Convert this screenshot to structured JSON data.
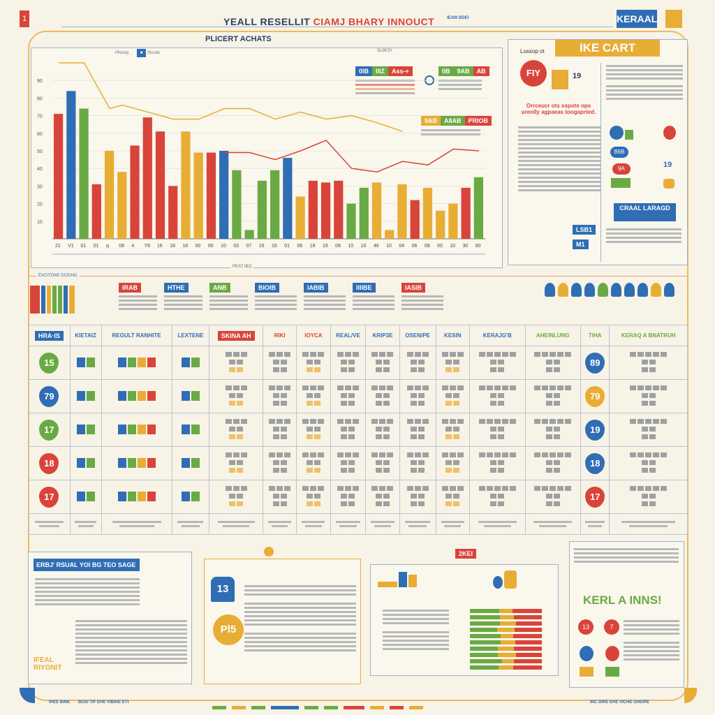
{
  "header": {
    "title_left": "YEALL RESELLIT",
    "title_right": "CIAMJ BHARY INNOUCT",
    "brand": "KERAAL",
    "left_badge": "1",
    "top_note": "IEAW BDEI"
  },
  "chart_panel": {
    "title": "PLICERT ACHATS",
    "legend": [
      "Plictsig",
      "Stcsds"
    ],
    "legend_box_a": [
      "0IB",
      "IIIZ",
      "Ass-+"
    ],
    "legend_box_b": [
      "0B",
      "9AB",
      "AB"
    ],
    "legend_box_c": [
      "9AB",
      "A8AB",
      "PRIOB"
    ],
    "slider_label": "SL9K3Y",
    "footer_note": "PEAT IBQ"
  },
  "chart_data": {
    "type": "bar",
    "title": "PLICERT ACHATS",
    "xlabel": "",
    "ylabel": "",
    "ylim": [
      0,
      100
    ],
    "yticks": [
      "90",
      "80",
      "70",
      "60",
      "50",
      "40",
      "30",
      "20",
      "10"
    ],
    "categories": [
      "21",
      "V1",
      "01",
      "01",
      "q",
      "08",
      "4",
      "Y6",
      "16",
      "18",
      "16",
      "00",
      "00",
      "10",
      "03",
      "07",
      "16",
      "16",
      "01",
      "06",
      "16",
      "16",
      "06",
      "10",
      "10",
      "46",
      "10",
      "04",
      "06",
      "08",
      "00",
      "10",
      "30",
      "60"
    ],
    "values": [
      71,
      84,
      74,
      31,
      50,
      38,
      53,
      69,
      61,
      30,
      61,
      49,
      49,
      50,
      39,
      5,
      33,
      39,
      46,
      24,
      33,
      32,
      33,
      20,
      29,
      32,
      5,
      31,
      22,
      29,
      16,
      20,
      29,
      35
    ],
    "bar_colors": [
      "#d9443a",
      "#2f6db5",
      "#6aaa45",
      "#d9443a",
      "#e8ad35",
      "#e8ad35",
      "#d9443a",
      "#d9443a",
      "#d9443a",
      "#d9443a",
      "#e8ad35",
      "#e8ad35",
      "#d9443a",
      "#2f6db5",
      "#6aaa45",
      "#6aaa45",
      "#6aaa45",
      "#6aaa45",
      "#2f6db5",
      "#e8ad35",
      "#d9443a",
      "#d9443a",
      "#d9443a",
      "#6aaa45",
      "#6aaa45",
      "#e8ad35",
      "#e8ad35",
      "#e8ad35",
      "#d9443a",
      "#e8ad35",
      "#e8ad35",
      "#e8ad35",
      "#d9443a",
      "#6aaa45"
    ],
    "series": [
      {
        "name": "orange-trend",
        "color": "#e8ad35",
        "x": [
          0,
          2,
          4,
          5,
          7,
          9,
          11,
          13,
          15,
          17,
          19,
          21,
          23,
          25,
          27
        ],
        "values": [
          100,
          100,
          74,
          76,
          72,
          68,
          68,
          74,
          74,
          68,
          72,
          68,
          70,
          66,
          61
        ]
      },
      {
        "name": "red-trend",
        "color": "#d9443a",
        "x": [
          13,
          15,
          17,
          19,
          21,
          23,
          25,
          27,
          29,
          31,
          33
        ],
        "values": [
          49,
          49,
          45,
          50,
          56,
          40,
          38,
          44,
          42,
          51,
          50
        ]
      }
    ]
  },
  "right_panel": {
    "banner": "IKE CART",
    "label": "Lussop ot",
    "badge": "FIY",
    "stat": "19",
    "headline": "Orrceucr ots sspote ops urenlly agpaeas toogaprted.",
    "button": "CRAAL LARAGD",
    "tags": [
      "LSB1",
      "M1"
    ],
    "pill_a": "B6B",
    "pill_b": "9A",
    "stat_b": "19"
  },
  "mid_strip": {
    "title": "EXCITONE DCEING",
    "tags": [
      "IRAB",
      "HTHE",
      "ANB",
      "BIOIB",
      "IABIB",
      "IIIIBE",
      "IASIB"
    ],
    "icon_count": 10
  },
  "table": {
    "headers": [
      "HRA·IS",
      "KIETAIZ",
      "REGULT RANHITE",
      "LEXTENE",
      "SKINA AH",
      "RIKI",
      "IOYCA",
      "REAL/VE",
      "KRIP3E",
      "OSEN/PE",
      "KESIN",
      "KERAJG'B",
      "AHEINLUNG",
      "TIHA",
      "KERAQ A BNATRUH"
    ],
    "rows": [
      {
        "left": "15",
        "left_color": "#6aaa45",
        "right": "89",
        "right_color": "#2f6db5"
      },
      {
        "left": "79",
        "left_color": "#2f6db5",
        "right": "79",
        "right_color": "#e8ad35"
      },
      {
        "left": "17",
        "left_color": "#6aaa45",
        "right": "19",
        "right_color": "#2f6db5"
      },
      {
        "left": "18",
        "left_color": "#d9443a",
        "right": "18",
        "right_color": "#2f6db5"
      },
      {
        "left": "17",
        "left_color": "#d9443a",
        "right": "17",
        "right_color": "#d9443a"
      }
    ]
  },
  "bottom": {
    "panel1_title": "ERBJ' RSUAL YOI BG TEO SAGE",
    "panel1_side": "IFEAL RIYONIT",
    "panel2_badge_a": "13",
    "panel2_badge_b": "Pl5",
    "panel3_tag": "2KEI",
    "panel4_title": "KERL A INNS!",
    "panel4_badges": [
      "13",
      "7",
      "",
      ""
    ]
  },
  "footer": {
    "left": "IHEE BINK",
    "mid": "BOSI TIF EHE VIBIHE EYI",
    "right": "INC DIRE EHE VICHE GHEIRE"
  }
}
